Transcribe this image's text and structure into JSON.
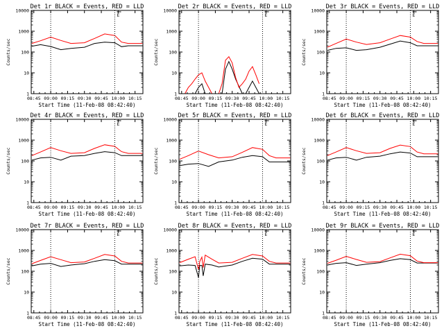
{
  "chart_data": [
    {
      "type": "line",
      "title": "Det 1r BLACK = Events, RED = LLD",
      "xlabel": "Start Time (11-Feb-08 08:42:40)",
      "ylabel": "Counts/sec",
      "yscale": "log",
      "ylim": [
        1,
        10000
      ],
      "xticks": [
        "08:45",
        "09:00",
        "09:15",
        "09:30",
        "09:45",
        "10:00",
        "10:15"
      ],
      "yticks": [
        "1",
        "10",
        "100",
        "1000",
        "10000"
      ],
      "x_range_hours": [
        8.7111,
        10.3667
      ],
      "event_lines": [
        "09:00",
        "09:57"
      ],
      "annotation": "E",
      "series": [
        {
          "name": "Events",
          "color": "#000000",
          "x": [
            8.72,
            8.85,
            9.0,
            9.15,
            9.3,
            9.5,
            9.65,
            9.8,
            9.95,
            10.05,
            10.15,
            10.3,
            10.36
          ],
          "y": [
            190,
            225,
            185,
            130,
            150,
            170,
            260,
            300,
            280,
            180,
            200,
            200,
            200
          ]
        },
        {
          "name": "LLD",
          "color": "#ff0000",
          "x": [
            8.72,
            8.85,
            9.0,
            9.15,
            9.3,
            9.5,
            9.65,
            9.8,
            9.95,
            10.05,
            10.15,
            10.3,
            10.36
          ],
          "y": [
            260,
            350,
            520,
            360,
            260,
            280,
            450,
            740,
            620,
            300,
            260,
            260,
            260
          ]
        }
      ]
    },
    {
      "type": "line",
      "title": "Det 2r BLACK = Events, RED = LLD",
      "xlabel": "Start Time (11-Feb-08 08:42:40)",
      "ylabel": "Counts/sec",
      "yscale": "log",
      "ylim": [
        1,
        10000
      ],
      "xticks": [
        "08:45",
        "09:00",
        "09:15",
        "09:30",
        "09:45",
        "10:00",
        "10:15"
      ],
      "yticks": [
        "1",
        "10",
        "100",
        "1000",
        "10000"
      ],
      "x_range_hours": [
        8.7111,
        10.3667
      ],
      "event_lines": [
        "09:00",
        "09:57"
      ],
      "annotation": "E",
      "series": [
        {
          "name": "Events",
          "color": "#000000",
          "x": [
            8.95,
            9.0,
            9.05,
            9.1,
            9.2,
            9.35,
            9.4,
            9.45,
            9.5,
            9.55,
            9.65,
            9.7,
            9.75,
            9.8,
            9.85,
            9.9
          ],
          "y": [
            1,
            2,
            3,
            1,
            1,
            1,
            15,
            35,
            15,
            5,
            1,
            1,
            2,
            4,
            2,
            1
          ]
        },
        {
          "name": "LLD",
          "color": "#ff0000",
          "x": [
            8.8,
            8.85,
            8.9,
            8.95,
            9.0,
            9.05,
            9.1,
            9.15,
            9.2,
            9.3,
            9.35,
            9.4,
            9.45,
            9.5,
            9.55,
            9.6,
            9.65,
            9.7,
            9.75,
            9.8,
            9.85,
            9.9
          ],
          "y": [
            1,
            2,
            3,
            5,
            8,
            10,
            4,
            2,
            1,
            1,
            3,
            40,
            60,
            30,
            6,
            2,
            3,
            5,
            12,
            20,
            8,
            3
          ]
        }
      ]
    },
    {
      "type": "line",
      "title": "Det 3r BLACK = Events, RED = LLD",
      "xlabel": "Start Time (11-Feb-08 08:42:40)",
      "ylabel": "Counts/sec",
      "yscale": "log",
      "ylim": [
        1,
        10000
      ],
      "xticks": [
        "08:45",
        "09:00",
        "09:15",
        "09:30",
        "09:45",
        "10:00",
        "10:15"
      ],
      "yticks": [
        "1",
        "10",
        "100",
        "1000",
        "10000"
      ],
      "x_range_hours": [
        8.7111,
        10.3667
      ],
      "event_lines": [
        "09:00",
        "09:57"
      ],
      "annotation": "E",
      "series": [
        {
          "name": "Events",
          "color": "#000000",
          "x": [
            8.72,
            8.85,
            9.0,
            9.15,
            9.3,
            9.5,
            9.65,
            9.8,
            9.95,
            10.05,
            10.15,
            10.3,
            10.36
          ],
          "y": [
            120,
            150,
            160,
            120,
            130,
            170,
            240,
            340,
            280,
            200,
            200,
            200,
            200
          ]
        },
        {
          "name": "LLD",
          "color": "#ff0000",
          "x": [
            8.72,
            8.85,
            9.0,
            9.15,
            9.3,
            9.5,
            9.65,
            9.8,
            9.95,
            10.05,
            10.15,
            10.3,
            10.36
          ],
          "y": [
            170,
            260,
            420,
            300,
            230,
            280,
            420,
            620,
            520,
            320,
            260,
            260,
            260
          ]
        }
      ]
    },
    {
      "type": "line",
      "title": "Det 4r BLACK = Events, RED = LLD",
      "xlabel": "Start Time (11-Feb-08 08:42:40)",
      "ylabel": "Counts/sec",
      "yscale": "log",
      "ylim": [
        1,
        10000
      ],
      "xticks": [
        "08:45",
        "09:00",
        "09:15",
        "09:30",
        "09:45",
        "10:00",
        "10:15"
      ],
      "yticks": [
        "1",
        "10",
        "100",
        "1000",
        "10000"
      ],
      "x_range_hours": [
        8.7111,
        10.3667
      ],
      "event_lines": [
        "09:00",
        "09:57"
      ],
      "annotation": "E",
      "series": [
        {
          "name": "Events",
          "color": "#000000",
          "x": [
            8.72,
            8.85,
            9.0,
            9.15,
            9.3,
            9.5,
            9.65,
            9.8,
            9.95,
            10.05,
            10.15,
            10.3,
            10.36
          ],
          "y": [
            110,
            140,
            150,
            110,
            170,
            180,
            230,
            280,
            250,
            180,
            180,
            180,
            180
          ]
        },
        {
          "name": "LLD",
          "color": "#ff0000",
          "x": [
            8.72,
            8.85,
            9.0,
            9.15,
            9.3,
            9.5,
            9.65,
            9.8,
            9.95,
            10.05,
            10.15,
            10.3,
            10.36
          ],
          "y": [
            180,
            270,
            440,
            310,
            230,
            250,
            400,
            600,
            500,
            280,
            230,
            230,
            230
          ]
        }
      ]
    },
    {
      "type": "line",
      "title": "Det 5r BLACK = Events, RED = LLD",
      "xlabel": "Start Time (11-Feb-08 08:42:40)",
      "ylabel": "Counts/sec",
      "yscale": "log",
      "ylim": [
        1,
        10000
      ],
      "xticks": [
        "08:45",
        "09:00",
        "09:15",
        "09:30",
        "09:45",
        "10:00",
        "10:15"
      ],
      "yticks": [
        "1",
        "10",
        "100",
        "1000",
        "10000"
      ],
      "x_range_hours": [
        8.7111,
        10.3667
      ],
      "event_lines": [
        "09:00",
        "09:57"
      ],
      "annotation": "E",
      "series": [
        {
          "name": "Events",
          "color": "#000000",
          "x": [
            8.72,
            8.85,
            9.0,
            9.15,
            9.3,
            9.5,
            9.65,
            9.8,
            9.95,
            10.05,
            10.15,
            10.3,
            10.36
          ],
          "y": [
            60,
            70,
            75,
            55,
            90,
            110,
            150,
            180,
            160,
            90,
            90,
            90,
            90
          ]
        },
        {
          "name": "LLD",
          "color": "#ff0000",
          "x": [
            8.72,
            8.85,
            9.0,
            9.15,
            9.3,
            9.5,
            9.65,
            9.8,
            9.95,
            10.05,
            10.15,
            10.3,
            10.36
          ],
          "y": [
            120,
            180,
            300,
            200,
            140,
            160,
            260,
            440,
            360,
            180,
            140,
            140,
            140
          ]
        }
      ]
    },
    {
      "type": "line",
      "title": "Det 6r BLACK = Events, RED = LLD",
      "xlabel": "Start Time (11-Feb-08 08:42:40)",
      "ylabel": "Counts/sec",
      "yscale": "log",
      "ylim": [
        1,
        10000
      ],
      "xticks": [
        "08:45",
        "09:00",
        "09:15",
        "09:30",
        "09:45",
        "10:00",
        "10:15"
      ],
      "yticks": [
        "1",
        "10",
        "100",
        "1000",
        "10000"
      ],
      "x_range_hours": [
        8.7111,
        10.3667
      ],
      "event_lines": [
        "09:00",
        "09:57"
      ],
      "annotation": "E",
      "series": [
        {
          "name": "Events",
          "color": "#000000",
          "x": [
            8.72,
            8.85,
            9.0,
            9.15,
            9.3,
            9.5,
            9.65,
            9.8,
            9.95,
            10.05,
            10.15,
            10.3,
            10.36
          ],
          "y": [
            110,
            140,
            150,
            110,
            150,
            170,
            220,
            270,
            240,
            160,
            160,
            160,
            160
          ]
        },
        {
          "name": "LLD",
          "color": "#ff0000",
          "x": [
            8.72,
            8.85,
            9.0,
            9.15,
            9.3,
            9.5,
            9.65,
            9.8,
            9.95,
            10.05,
            10.15,
            10.3,
            10.36
          ],
          "y": [
            180,
            270,
            440,
            310,
            230,
            250,
            400,
            580,
            490,
            270,
            220,
            220,
            220
          ]
        }
      ]
    },
    {
      "type": "line",
      "title": "Det 7r BLACK = Events, RED = LLD",
      "xlabel": "Start Time (11-Feb-08 08:42:40)",
      "ylabel": "Counts/sec",
      "yscale": "log",
      "ylim": [
        1,
        10000
      ],
      "xticks": [
        "08:45",
        "09:00",
        "09:15",
        "09:30",
        "09:45",
        "10:00",
        "10:15"
      ],
      "yticks": [
        "1",
        "10",
        "100",
        "1000",
        "10000"
      ],
      "x_range_hours": [
        8.7111,
        10.3667
      ],
      "event_lines": [
        "09:00",
        "09:57"
      ],
      "annotation": "E",
      "series": [
        {
          "name": "Events",
          "color": "#000000",
          "x": [
            8.72,
            8.85,
            9.0,
            9.15,
            9.3,
            9.5,
            9.65,
            9.8,
            9.95,
            10.05,
            10.15,
            10.3,
            10.36
          ],
          "y": [
            180,
            220,
            240,
            170,
            200,
            230,
            300,
            360,
            320,
            220,
            220,
            220,
            220
          ]
        },
        {
          "name": "LLD",
          "color": "#ff0000",
          "x": [
            8.72,
            8.85,
            9.0,
            9.15,
            9.3,
            9.5,
            9.65,
            9.8,
            9.95,
            10.05,
            10.15,
            10.3,
            10.36
          ],
          "y": [
            230,
            330,
            500,
            360,
            260,
            280,
            420,
            640,
            540,
            300,
            250,
            250,
            250
          ]
        }
      ]
    },
    {
      "type": "line",
      "title": "Det 8r BLACK = Events, RED = LLD",
      "xlabel": "Start Time (11-Feb-08 08:42:40)",
      "ylabel": "Counts/sec",
      "yscale": "log",
      "ylim": [
        1,
        10000
      ],
      "xticks": [
        "08:45",
        "09:00",
        "09:15",
        "09:30",
        "09:45",
        "10:00",
        "10:15"
      ],
      "yticks": [
        "1",
        "10",
        "100",
        "1000",
        "10000"
      ],
      "x_range_hours": [
        8.7111,
        10.3667
      ],
      "event_lines": [
        "09:00",
        "09:57"
      ],
      "annotation": "E",
      "series": [
        {
          "name": "Events",
          "color": "#000000",
          "x": [
            8.72,
            8.85,
            8.95,
            9.0,
            9.02,
            9.05,
            9.07,
            9.1,
            9.2,
            9.3,
            9.5,
            9.65,
            9.8,
            9.95,
            10.05,
            10.15,
            10.36
          ],
          "y": [
            180,
            200,
            190,
            50,
            190,
            190,
            60,
            220,
            200,
            160,
            200,
            300,
            420,
            380,
            220,
            220,
            220
          ]
        },
        {
          "name": "LLD",
          "color": "#ff0000",
          "x": [
            8.72,
            8.85,
            8.95,
            9.0,
            9.02,
            9.05,
            9.07,
            9.1,
            9.2,
            9.3,
            9.5,
            9.65,
            9.8,
            9.95,
            10.05,
            10.15,
            10.36
          ],
          "y": [
            260,
            380,
            500,
            120,
            300,
            480,
            150,
            600,
            380,
            250,
            270,
            420,
            640,
            540,
            300,
            250,
            250
          ]
        }
      ]
    },
    {
      "type": "line",
      "title": "Det 9r BLACK = Events, RED = LLD",
      "xlabel": "Start Time (11-Feb-08 08:42:40)",
      "ylabel": "Counts/sec",
      "yscale": "log",
      "ylim": [
        1,
        10000
      ],
      "xticks": [
        "08:45",
        "09:00",
        "09:15",
        "09:30",
        "09:45",
        "10:00",
        "10:15"
      ],
      "yticks": [
        "1",
        "10",
        "100",
        "1000",
        "10000"
      ],
      "x_range_hours": [
        8.7111,
        10.3667
      ],
      "event_lines": [
        "09:00",
        "09:57"
      ],
      "annotation": "E",
      "series": [
        {
          "name": "Events",
          "color": "#000000",
          "x": [
            8.72,
            8.85,
            9.0,
            9.15,
            9.3,
            9.5,
            9.65,
            9.8,
            9.95,
            10.05,
            10.15,
            10.3,
            10.36
          ],
          "y": [
            200,
            240,
            260,
            190,
            220,
            260,
            330,
            400,
            360,
            250,
            250,
            250,
            250
          ]
        },
        {
          "name": "LLD",
          "color": "#ff0000",
          "x": [
            8.72,
            8.85,
            9.0,
            9.15,
            9.3,
            9.5,
            9.65,
            9.8,
            9.95,
            10.05,
            10.15,
            10.3,
            10.36
          ],
          "y": [
            240,
            340,
            520,
            370,
            270,
            290,
            440,
            660,
            560,
            310,
            260,
            260,
            260
          ]
        }
      ]
    }
  ]
}
